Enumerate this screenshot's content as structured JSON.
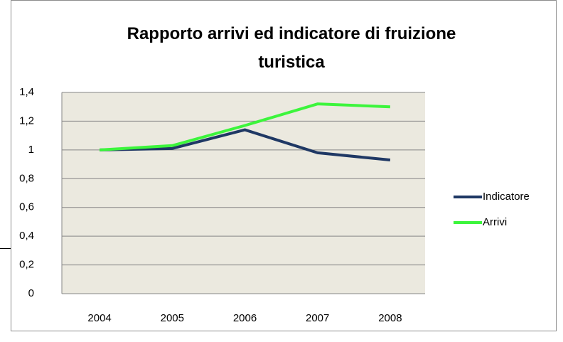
{
  "chart_data": {
    "type": "line",
    "title": "Rapporto arrivi ed indicatore di fruizione turistica",
    "categories": [
      "2004",
      "2005",
      "2006",
      "2007",
      "2008"
    ],
    "series": [
      {
        "name": "Indicatore",
        "color": "#1f3864",
        "values": [
          1,
          1.01,
          1.14,
          0.98,
          0.93
        ]
      },
      {
        "name": "Arrivi",
        "color": "#3cf53c",
        "values": [
          1,
          1.03,
          1.17,
          1.32,
          1.3
        ]
      }
    ],
    "ylim": [
      0,
      1.4
    ],
    "yticks": [
      0,
      {
        "value": 0.2,
        "label": "0,2"
      },
      {
        "value": 0.4,
        "label": "0,4"
      },
      {
        "value": 0.6,
        "label": "0,6"
      },
      {
        "value": 0.8,
        "label": "0,8"
      },
      1,
      {
        "value": 1.2,
        "label": "1,2"
      },
      {
        "value": 1.4,
        "label": "1,4"
      }
    ],
    "grid": true,
    "legend": "right"
  }
}
